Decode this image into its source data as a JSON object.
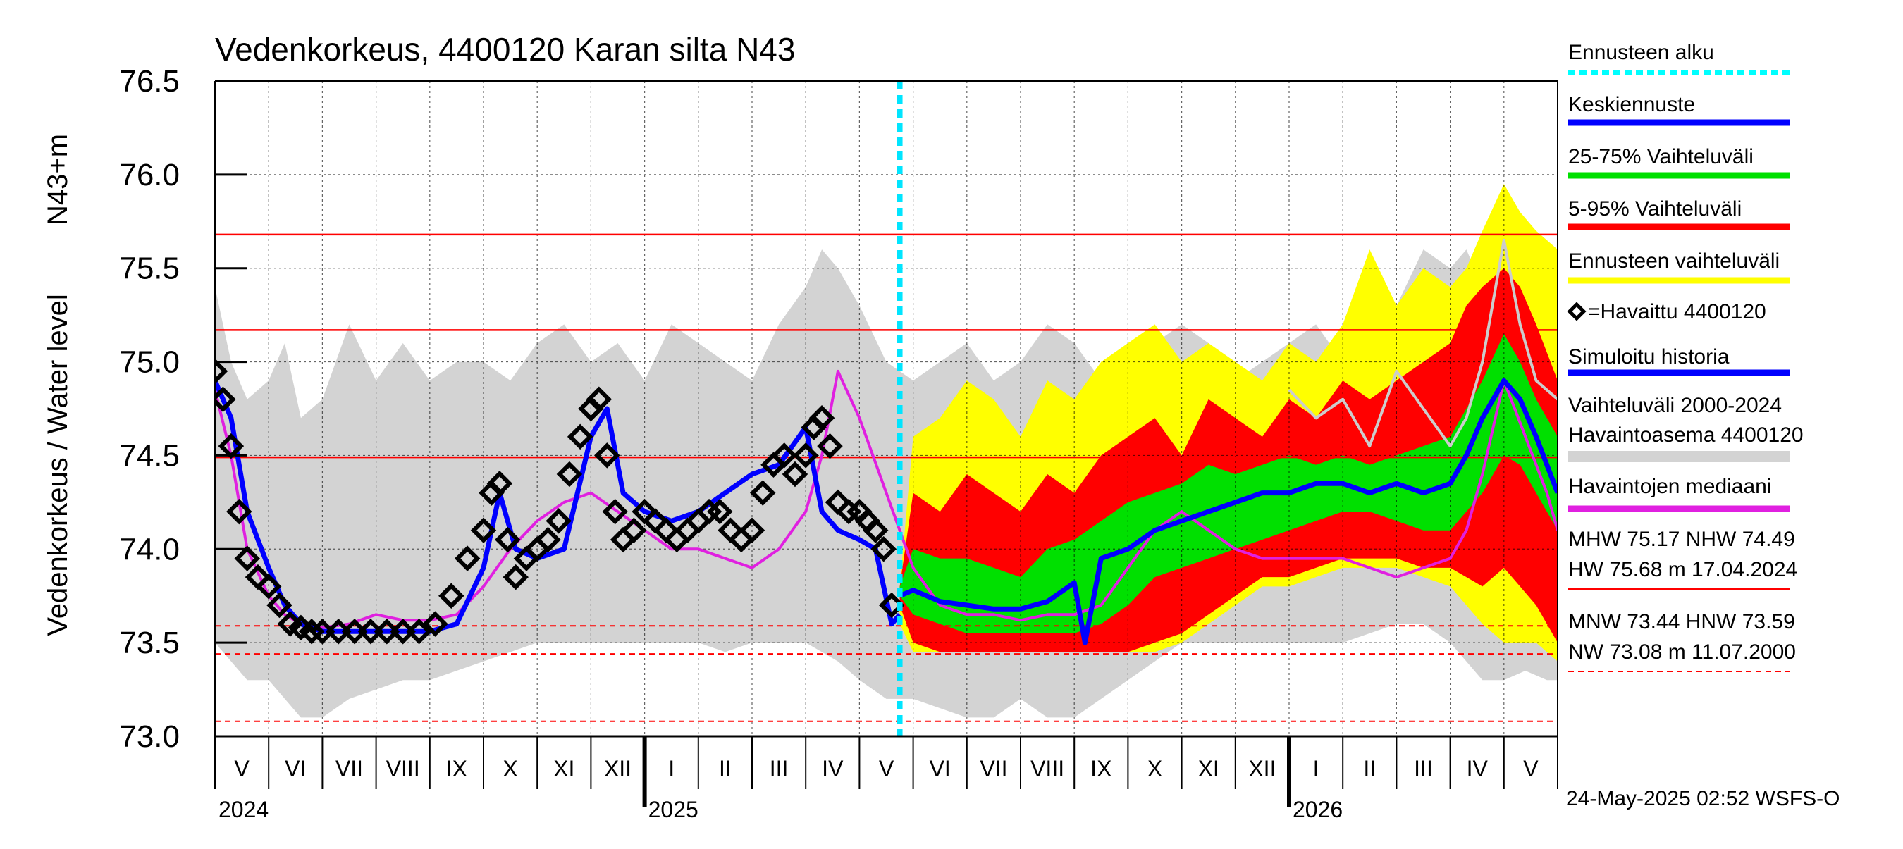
{
  "chart_data": {
    "type": "area",
    "title": "Vedenkorkeus, 4400120 Karan silta N43",
    "ylabel": "Vedenkorkeus / Water level",
    "ylabel_unit": "N43+m",
    "ylim": [
      73.0,
      76.5
    ],
    "yticks": [
      "73.0",
      "73.5",
      "74.0",
      "74.5",
      "75.0",
      "75.5",
      "76.0",
      "76.5"
    ],
    "x_start_index": 0,
    "x_end_index": 25,
    "months": [
      {
        "label": "V",
        "start": 0
      },
      {
        "label": "VI",
        "start": 1
      },
      {
        "label": "VII",
        "start": 2
      },
      {
        "label": "VIII",
        "start": 3
      },
      {
        "label": "IX",
        "start": 4
      },
      {
        "label": "X",
        "start": 5
      },
      {
        "label": "XI",
        "start": 6
      },
      {
        "label": "XII",
        "start": 7
      },
      {
        "label": "I",
        "start": 8
      },
      {
        "label": "II",
        "start": 9
      },
      {
        "label": "III",
        "start": 10
      },
      {
        "label": "IV",
        "start": 11
      },
      {
        "label": "V",
        "start": 12
      },
      {
        "label": "VI",
        "start": 13
      },
      {
        "label": "VII",
        "start": 14
      },
      {
        "label": "VIII",
        "start": 15
      },
      {
        "label": "IX",
        "start": 16
      },
      {
        "label": "X",
        "start": 17
      },
      {
        "label": "XI",
        "start": 18
      },
      {
        "label": "XII",
        "start": 19
      },
      {
        "label": "I",
        "start": 20
      },
      {
        "label": "II",
        "start": 21
      },
      {
        "label": "III",
        "start": 22
      },
      {
        "label": "IV",
        "start": 23
      },
      {
        "label": "V",
        "start": 24
      }
    ],
    "years": [
      {
        "label": "2024",
        "at": 0
      },
      {
        "label": "2025",
        "at": 8
      },
      {
        "label": "2026",
        "at": 20
      }
    ],
    "forecast_start": 12.75,
    "reference_lines": {
      "solid": [
        75.68,
        75.17,
        74.49
      ],
      "dashed": [
        73.59,
        73.44,
        73.08
      ]
    },
    "series": [
      {
        "name": "Vaihteluväli 2000-2024",
        "kind": "band",
        "color": "#d3d3d3",
        "x": [
          0,
          0.3,
          0.6,
          1.0,
          1.3,
          1.6,
          2.0,
          2.5,
          3.0,
          3.5,
          4.0,
          4.5,
          5.0,
          5.5,
          6.0,
          6.5,
          7.0,
          7.5,
          8.0,
          8.5,
          9.0,
          9.5,
          10.0,
          10.5,
          11.0,
          11.3,
          11.6,
          12.0,
          12.5,
          13.0,
          13.5,
          14.0,
          14.5,
          15.0,
          15.5,
          16.0,
          16.5,
          17.0,
          17.5,
          18.0,
          18.5,
          19.0,
          19.5,
          20.0,
          20.5,
          21.0,
          21.5,
          22.0,
          22.5,
          23.0,
          23.3,
          23.6,
          24.0,
          24.4,
          24.8,
          25.0
        ],
        "low": [
          73.5,
          73.4,
          73.3,
          73.3,
          73.2,
          73.1,
          73.1,
          73.2,
          73.25,
          73.3,
          73.3,
          73.35,
          73.4,
          73.45,
          73.5,
          73.5,
          73.5,
          73.5,
          73.5,
          73.5,
          73.5,
          73.45,
          73.5,
          73.5,
          73.5,
          73.45,
          73.4,
          73.3,
          73.2,
          73.2,
          73.15,
          73.1,
          73.1,
          73.2,
          73.1,
          73.1,
          73.2,
          73.3,
          73.4,
          73.5,
          73.5,
          73.5,
          73.5,
          73.5,
          73.5,
          73.5,
          73.55,
          73.6,
          73.6,
          73.5,
          73.4,
          73.3,
          73.3,
          73.35,
          73.3,
          73.3
        ],
        "high": [
          75.4,
          75.0,
          74.8,
          74.9,
          75.1,
          74.7,
          74.8,
          75.2,
          74.9,
          75.1,
          74.9,
          75.0,
          75.0,
          74.9,
          75.1,
          75.2,
          75.0,
          75.1,
          74.9,
          75.2,
          75.1,
          75.0,
          74.9,
          75.2,
          75.4,
          75.6,
          75.5,
          75.3,
          75.0,
          74.9,
          75.0,
          75.1,
          74.9,
          75.0,
          75.2,
          75.1,
          74.9,
          75.0,
          75.1,
          75.2,
          75.1,
          74.9,
          75.0,
          75.1,
          75.2,
          75.0,
          75.1,
          75.3,
          75.6,
          75.5,
          75.6,
          75.4,
          75.3,
          75.5,
          75.2,
          74.9
        ]
      },
      {
        "name": "Ennusteen vaihteluväli",
        "kind": "band",
        "color": "#ffff00",
        "x": [
          12.75,
          13.0,
          13.5,
          14.0,
          14.5,
          15.0,
          15.5,
          16.0,
          16.5,
          17.0,
          17.5,
          18.0,
          18.5,
          19.0,
          19.5,
          20.0,
          20.5,
          21.0,
          21.5,
          22.0,
          22.5,
          23.0,
          23.3,
          23.6,
          24.0,
          24.3,
          24.6,
          25.0
        ],
        "low": [
          73.6,
          73.45,
          73.45,
          73.45,
          73.45,
          73.45,
          73.45,
          73.45,
          73.45,
          73.45,
          73.45,
          73.5,
          73.6,
          73.7,
          73.8,
          73.8,
          73.85,
          73.9,
          73.9,
          73.9,
          73.85,
          73.8,
          73.7,
          73.6,
          73.5,
          73.5,
          73.5,
          73.4
        ],
        "high": [
          73.8,
          74.6,
          74.7,
          74.9,
          74.8,
          74.6,
          74.9,
          74.8,
          75.0,
          75.1,
          75.2,
          75.0,
          75.1,
          75.0,
          74.9,
          75.1,
          75.0,
          75.2,
          75.6,
          75.3,
          75.5,
          75.4,
          75.5,
          75.7,
          75.95,
          75.8,
          75.7,
          75.6
        ]
      },
      {
        "name": "5-95% Vaihteluväli",
        "kind": "band",
        "color": "#ff0000",
        "x": [
          12.75,
          13.0,
          13.5,
          14.0,
          14.5,
          15.0,
          15.5,
          16.0,
          16.5,
          17.0,
          17.5,
          18.0,
          18.5,
          19.0,
          19.5,
          20.0,
          20.5,
          21.0,
          21.5,
          22.0,
          22.5,
          23.0,
          23.3,
          23.6,
          24.0,
          24.3,
          24.6,
          25.0
        ],
        "low": [
          73.7,
          73.5,
          73.45,
          73.45,
          73.45,
          73.45,
          73.45,
          73.45,
          73.45,
          73.45,
          73.5,
          73.55,
          73.65,
          73.75,
          73.85,
          73.85,
          73.9,
          73.95,
          73.95,
          73.95,
          73.9,
          73.9,
          73.85,
          73.8,
          73.9,
          73.8,
          73.7,
          73.5
        ],
        "high": [
          73.8,
          74.3,
          74.2,
          74.4,
          74.3,
          74.2,
          74.4,
          74.3,
          74.5,
          74.6,
          74.7,
          74.5,
          74.8,
          74.7,
          74.6,
          74.8,
          74.7,
          74.9,
          74.8,
          74.9,
          75.0,
          75.1,
          75.3,
          75.4,
          75.5,
          75.4,
          75.2,
          74.9
        ]
      },
      {
        "name": "25-75% Vaihteluväli",
        "kind": "band",
        "color": "#00e000",
        "x": [
          12.75,
          13.0,
          13.5,
          14.0,
          14.5,
          15.0,
          15.5,
          16.0,
          16.5,
          17.0,
          17.5,
          18.0,
          18.5,
          19.0,
          19.5,
          20.0,
          20.5,
          21.0,
          21.5,
          22.0,
          22.5,
          23.0,
          23.3,
          23.6,
          24.0,
          24.3,
          24.6,
          25.0
        ],
        "low": [
          73.75,
          73.65,
          73.6,
          73.55,
          73.55,
          73.55,
          73.55,
          73.55,
          73.6,
          73.7,
          73.85,
          73.9,
          73.95,
          74.0,
          74.05,
          74.1,
          74.15,
          74.2,
          74.2,
          74.15,
          74.1,
          74.1,
          74.2,
          74.3,
          74.5,
          74.45,
          74.3,
          74.1
        ],
        "high": [
          73.8,
          74.0,
          73.95,
          73.95,
          73.9,
          73.85,
          74.0,
          74.05,
          74.15,
          74.25,
          74.3,
          74.35,
          74.45,
          74.4,
          74.45,
          74.5,
          74.45,
          74.5,
          74.45,
          74.5,
          74.55,
          74.6,
          74.75,
          74.9,
          75.15,
          75.0,
          74.8,
          74.6
        ]
      },
      {
        "name": "Havaintojen mediaani",
        "kind": "line",
        "color": "#e020e0",
        "x": [
          0,
          0.3,
          0.6,
          1.0,
          1.3,
          1.6,
          2.0,
          2.5,
          3.0,
          3.5,
          4.0,
          4.5,
          5.0,
          5.5,
          6.0,
          6.5,
          7.0,
          7.5,
          8.0,
          8.5,
          9.0,
          9.5,
          10.0,
          10.5,
          11.0,
          11.3,
          11.6,
          12.0,
          12.5,
          13.0,
          13.5,
          14.0,
          14.5,
          15.0,
          15.5,
          16.0,
          16.5,
          17.0,
          17.5,
          18.0,
          18.5,
          19.0,
          19.5,
          20.0,
          20.5,
          21.0,
          21.5,
          22.0,
          22.5,
          23.0,
          23.3,
          23.6,
          24.0,
          24.4,
          24.8,
          25.0
        ],
        "y": [
          74.85,
          74.5,
          74.0,
          73.75,
          73.65,
          73.6,
          73.58,
          73.6,
          73.65,
          73.62,
          73.62,
          73.65,
          73.8,
          74.0,
          74.15,
          74.25,
          74.3,
          74.2,
          74.1,
          74.0,
          74.0,
          73.95,
          73.9,
          74.0,
          74.2,
          74.5,
          74.95,
          74.7,
          74.3,
          73.9,
          73.7,
          73.65,
          73.65,
          73.62,
          73.65,
          73.65,
          73.7,
          73.9,
          74.1,
          74.2,
          74.1,
          74.0,
          73.95,
          73.95,
          73.95,
          73.95,
          73.9,
          73.85,
          73.9,
          73.95,
          74.1,
          74.4,
          74.9,
          74.6,
          74.3,
          74.1
        ]
      },
      {
        "name": "Ennusteen vaihteluväli upper trace",
        "kind": "line",
        "color": "#cccccc",
        "x": [
          20.0,
          20.5,
          21.0,
          21.5,
          22.0,
          22.5,
          23.0,
          23.3,
          23.6,
          24.0,
          24.3,
          24.6,
          25.0
        ],
        "y": [
          74.85,
          74.7,
          74.8,
          74.55,
          74.95,
          74.75,
          74.55,
          74.7,
          75.0,
          75.65,
          75.2,
          74.9,
          74.8
        ]
      },
      {
        "name": "Simuloitu historia",
        "kind": "line",
        "color": "#0000ff",
        "x": [
          0,
          0.3,
          0.6,
          1.0,
          1.3,
          1.6,
          2.0,
          2.5,
          3.0,
          3.5,
          4.0,
          4.5,
          5.0,
          5.3,
          5.6,
          6.0,
          6.5,
          7.0,
          7.3,
          7.6,
          8.0,
          8.5,
          9.0,
          9.5,
          10.0,
          10.5,
          11.0,
          11.3,
          11.6,
          12.0,
          12.3,
          12.6,
          12.75
        ],
        "y": [
          74.9,
          74.7,
          74.2,
          73.9,
          73.7,
          73.6,
          73.56,
          73.56,
          73.56,
          73.56,
          73.56,
          73.6,
          73.9,
          74.3,
          74.0,
          73.95,
          74.0,
          74.6,
          74.75,
          74.3,
          74.2,
          74.15,
          74.2,
          74.3,
          74.4,
          74.45,
          74.65,
          74.2,
          74.1,
          74.05,
          74.0,
          73.6,
          73.65
        ]
      },
      {
        "name": "Keskiennuste",
        "kind": "line",
        "color": "#0000ff",
        "x": [
          12.75,
          13.0,
          13.5,
          14.0,
          14.5,
          15.0,
          15.5,
          16.0,
          16.2,
          16.5,
          17.0,
          17.5,
          18.0,
          18.5,
          19.0,
          19.5,
          20.0,
          20.5,
          21.0,
          21.5,
          22.0,
          22.5,
          23.0,
          23.3,
          23.6,
          24.0,
          24.3,
          24.6,
          25.0
        ],
        "y": [
          73.75,
          73.78,
          73.72,
          73.7,
          73.68,
          73.68,
          73.72,
          73.82,
          73.5,
          73.95,
          74.0,
          74.1,
          74.15,
          74.2,
          74.25,
          74.3,
          74.3,
          74.35,
          74.35,
          74.3,
          74.35,
          74.3,
          74.35,
          74.5,
          74.7,
          74.9,
          74.8,
          74.6,
          74.3
        ]
      },
      {
        "name": "Havaittu 4400120",
        "kind": "markers",
        "color": "#000000",
        "x": [
          0,
          0.15,
          0.3,
          0.45,
          0.6,
          0.8,
          1.0,
          1.2,
          1.4,
          1.6,
          1.8,
          2.0,
          2.3,
          2.6,
          2.9,
          3.2,
          3.5,
          3.8,
          4.1,
          4.4,
          4.7,
          5.0,
          5.15,
          5.3,
          5.45,
          5.6,
          5.8,
          6.0,
          6.2,
          6.4,
          6.6,
          6.8,
          7.0,
          7.15,
          7.3,
          7.45,
          7.6,
          7.8,
          8.0,
          8.2,
          8.4,
          8.6,
          8.8,
          9.0,
          9.2,
          9.4,
          9.6,
          9.8,
          10.0,
          10.2,
          10.4,
          10.6,
          10.8,
          11.0,
          11.15,
          11.3,
          11.45,
          11.6,
          11.8,
          12.0,
          12.15,
          12.3,
          12.45,
          12.6
        ],
        "y": [
          74.95,
          74.8,
          74.55,
          74.2,
          73.95,
          73.85,
          73.8,
          73.7,
          73.6,
          73.58,
          73.56,
          73.56,
          73.56,
          73.56,
          73.56,
          73.56,
          73.56,
          73.56,
          73.6,
          73.75,
          73.95,
          74.1,
          74.3,
          74.35,
          74.05,
          73.85,
          73.95,
          74.0,
          74.05,
          74.15,
          74.4,
          74.6,
          74.75,
          74.8,
          74.5,
          74.2,
          74.05,
          74.1,
          74.2,
          74.15,
          74.1,
          74.05,
          74.1,
          74.15,
          74.2,
          74.2,
          74.1,
          74.05,
          74.1,
          74.3,
          74.45,
          74.5,
          74.4,
          74.5,
          74.65,
          74.7,
          74.55,
          74.25,
          74.2,
          74.2,
          74.15,
          74.1,
          74.0,
          73.7
        ]
      }
    ],
    "legend": [
      {
        "label": "Ennusteen alku",
        "color": "#00ffff",
        "style": "dotted"
      },
      {
        "label": "Keskiennuste",
        "color": "#0000ff",
        "style": "solid"
      },
      {
        "label": "25-75% Vaihteluväli",
        "color": "#00e000",
        "style": "solid"
      },
      {
        "label": "5-95% Vaihteluväli",
        "color": "#ff0000",
        "style": "solid"
      },
      {
        "label": "Ennusteen vaihteluväli",
        "color": "#ffff00",
        "style": "solid"
      },
      {
        "label": "=Havaittu 4400120",
        "color": "#000000",
        "style": "marker"
      },
      {
        "label": "Simuloitu historia",
        "color": "#0000ff",
        "style": "solid"
      },
      {
        "label": "Vaihteluväli 2000-2024",
        "color": "#d3d3d3",
        "style": "none"
      },
      {
        "label": " Havaintoasema 4400120",
        "color": "#d3d3d3",
        "style": "solid"
      },
      {
        "label": "Havaintojen mediaani",
        "color": "#e020e0",
        "style": "solid"
      }
    ],
    "stats": [
      {
        "text": "MHW  75.17 NHW  74.49",
        "style": "none"
      },
      {
        "text": "HW  75.68 m 17.04.2024",
        "style": "solid"
      },
      {
        "text": "MNW  73.44 HNW  73.59",
        "style": "none"
      },
      {
        "text": "NW  73.08 m 11.07.2000",
        "style": "dashed"
      }
    ],
    "footer": "24-May-2025 02:52 WSFS-O",
    "colors": {
      "grid": "#000000",
      "refline": "#ff0000",
      "forecast_start": "#00e5ff"
    }
  }
}
